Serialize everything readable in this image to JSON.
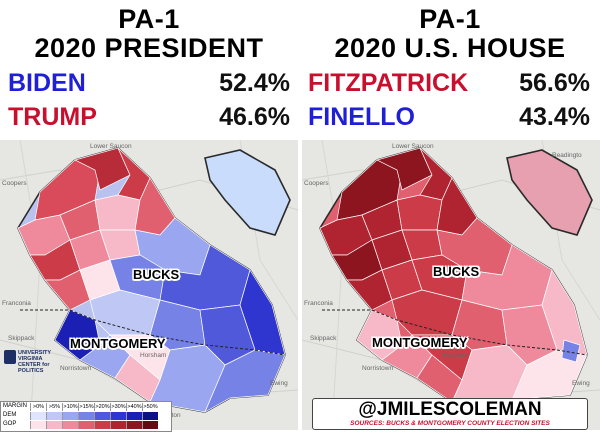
{
  "left": {
    "title_line1": "PA-1",
    "title_line2": "2020 PRESIDENT",
    "cand1": "BIDEN",
    "cand1_pct": "52.4%",
    "cand2": "TRUMP",
    "cand2_pct": "46.6%"
  },
  "right": {
    "title_line1": "PA-1",
    "title_line2": "2020 U.S. HOUSE",
    "cand1": "FITZPATRICK",
    "cand1_pct": "56.6%",
    "cand2": "FINELLO",
    "cand2_pct": "43.4%"
  },
  "labels": {
    "bucks": "BUCKS",
    "montgomery": "MONTGOMERY"
  },
  "legend": {
    "margin": "MARGIN",
    "dem": "DEM",
    "gop": "GOP",
    "bins": [
      ">0%",
      ">5%",
      ">10%",
      ">15%",
      ">20%",
      ">30%",
      ">40%",
      ">50%"
    ],
    "dem_colors": [
      "#dfe4ff",
      "#bfc8f5",
      "#9aa6ef",
      "#7782e6",
      "#5159db",
      "#2f36cf",
      "#1b1fb3",
      "#0d0f86"
    ],
    "gop_colors": [
      "#fde3ea",
      "#f7b9c8",
      "#ef8a9c",
      "#e0606f",
      "#cc3b48",
      "#b02431",
      "#8c1520",
      "#640a12"
    ]
  },
  "credit": {
    "handle": "@JMILESCOLEMAN",
    "source": "SOURCES: BUCKS & MONTGOMERY COUNTY ELECTION SITES"
  },
  "uva": {
    "line1": "UNIVERSITY",
    "line2": "VIRGINIA",
    "line3": "CENTER for POLITICS"
  },
  "basemap_places": {
    "left": [
      "Lower Saucon",
      "Coopers",
      "Franconia",
      "Skippack",
      "Norristown",
      "Whitemarsh",
      "Abington",
      "Horsham",
      "Ewing"
    ],
    "right": [
      "Lower Saucon",
      "Readingto",
      "Coopers",
      "Franconia",
      "Skippack",
      "Norristown",
      "Whitemarsh",
      "Abington",
      "Horsham",
      "Ewing"
    ]
  }
}
